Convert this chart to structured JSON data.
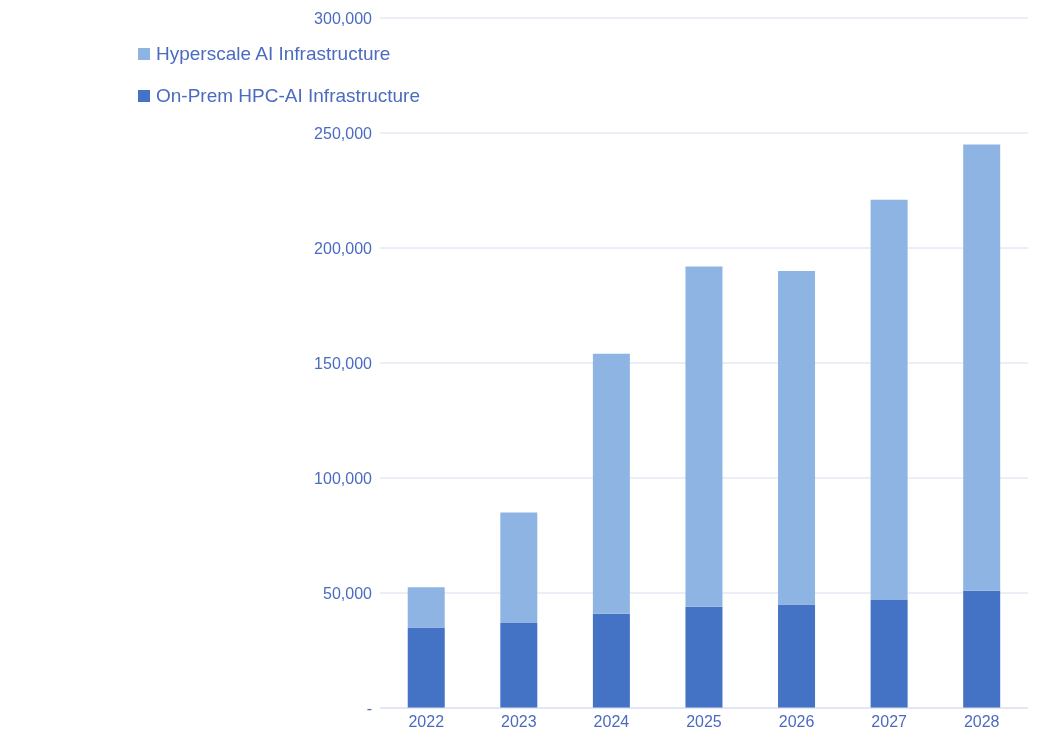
{
  "chart_data": {
    "type": "bar",
    "stacked": true,
    "categories": [
      "2022",
      "2023",
      "2024",
      "2025",
      "2026",
      "2027",
      "2028"
    ],
    "series": [
      {
        "name": "On-Prem HPC-AI Infrastructure",
        "color": "#4472c4",
        "values": [
          35000,
          37000,
          41000,
          44000,
          45000,
          47000,
          51000
        ]
      },
      {
        "name": "Hyperscale AI Infrastructure",
        "color": "#8db4e2",
        "values": [
          17500,
          48000,
          113000,
          148000,
          145000,
          174000,
          194000
        ]
      }
    ],
    "ylim": [
      0,
      300000
    ],
    "yticks": [
      {
        "value": 0,
        "label": "-"
      },
      {
        "value": 50000,
        "label": "50,000"
      },
      {
        "value": 100000,
        "label": "100,000"
      },
      {
        "value": 150000,
        "label": "150,000"
      },
      {
        "value": 200000,
        "label": "200,000"
      },
      {
        "value": 250000,
        "label": "250,000"
      },
      {
        "value": 300000,
        "label": "300,000"
      }
    ],
    "grid": "y",
    "legend": "top left"
  }
}
